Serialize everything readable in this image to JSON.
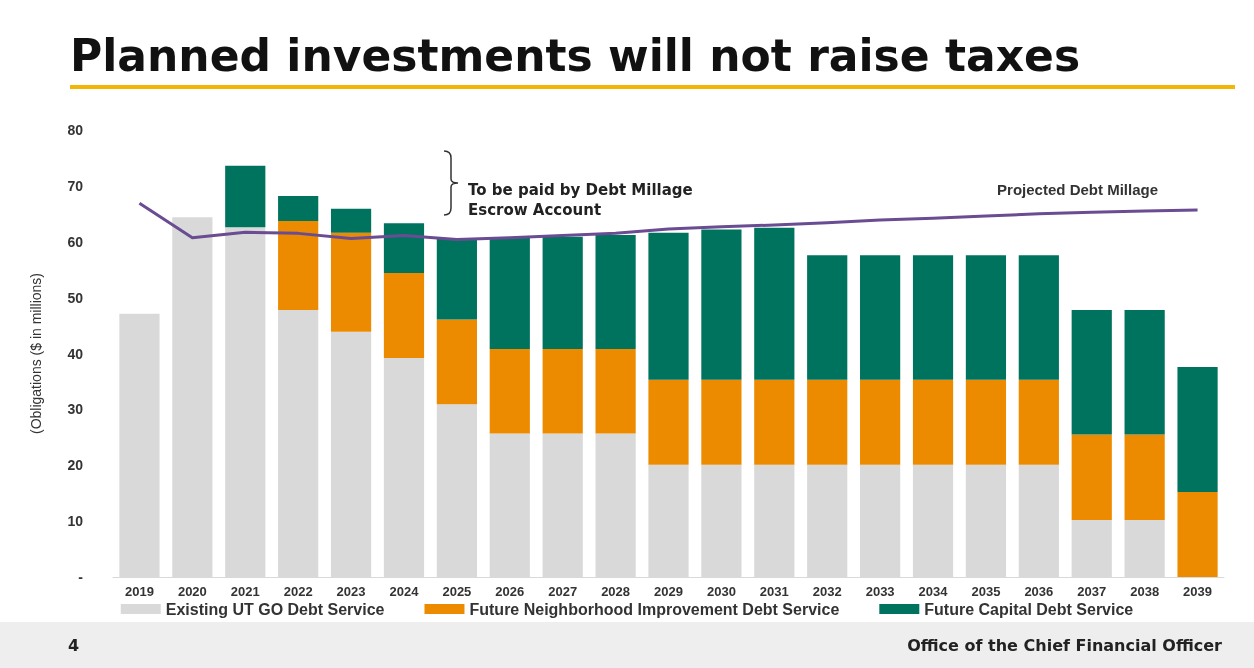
{
  "chart_data": {
    "type": "bar",
    "title": "Planned investments will not raise taxes",
    "ylabel": "(Obligations ($ in millions)",
    "categories": [
      "2019",
      "2020",
      "2021",
      "2022",
      "2023",
      "2024",
      "2025",
      "2026",
      "2027",
      "2028",
      "2029",
      "2030",
      "2031",
      "2032",
      "2033",
      "2034",
      "2035",
      "2036",
      "2037",
      "2038",
      "2039"
    ],
    "stacked": true,
    "series": [
      {
        "name": "Existing UT GO Debt Service",
        "color": "#d9d9d9",
        "values": [
          47.1,
          64.4,
          62.6,
          47.8,
          43.9,
          39.2,
          30.9,
          25.7,
          25.7,
          25.7,
          20.1,
          20.1,
          20.1,
          20.1,
          20.1,
          20.1,
          20.1,
          20.1,
          10.2,
          10.2,
          null
        ]
      },
      {
        "name": "Future Neighborhood Improvement Debt Service",
        "color": "#ed8b00",
        "values": [
          null,
          null,
          null,
          15.9,
          17.7,
          15.2,
          15.2,
          15.1,
          15.1,
          15.1,
          15.2,
          15.2,
          15.2,
          15.2,
          15.2,
          15.2,
          15.2,
          15.2,
          15.3,
          15.3,
          15.2
        ]
      },
      {
        "name": "Future Capital Debt Service",
        "color": "#00735f",
        "values": [
          null,
          null,
          11.0,
          4.5,
          4.3,
          8.9,
          14.5,
          20.0,
          20.1,
          20.4,
          26.3,
          26.9,
          27.2,
          22.3,
          22.3,
          22.3,
          22.3,
          22.3,
          22.3,
          22.3,
          22.4
        ]
      },
      {
        "name": "Projected Debt Millage",
        "type": "line",
        "color": "#6a4c93",
        "values": [
          66.9,
          60.7,
          61.7,
          61.5,
          60.6,
          61.1,
          60.4,
          60.7,
          61.1,
          61.5,
          62.3,
          62.7,
          63.0,
          63.4,
          63.9,
          64.2,
          64.6,
          65.0,
          65.3,
          65.5,
          65.7
        ]
      }
    ],
    "ylim": [
      0,
      80
    ],
    "yticks": [
      {
        "value": 0,
        "label": "-"
      },
      10,
      20,
      30,
      40,
      50,
      60,
      70,
      80
    ],
    "grid": false,
    "legend": "bottom",
    "marker": "none",
    "annotations": [
      "To be paid by Debt Millage Escrow Account",
      "4",
      "Office of the Chief Financial Officer"
    ]
  }
}
